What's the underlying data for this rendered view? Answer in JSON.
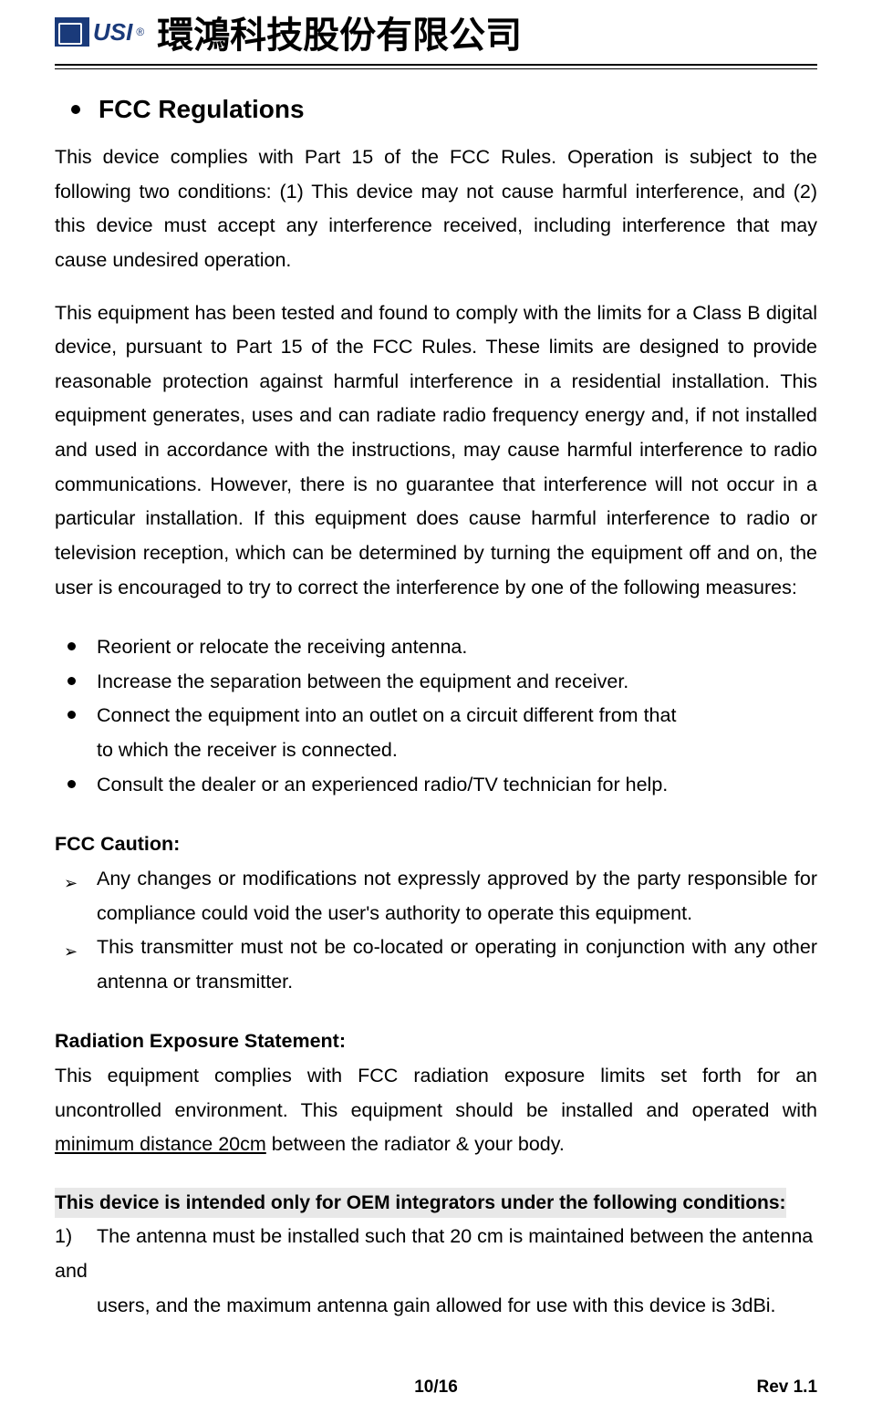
{
  "header": {
    "logo_text": "USI",
    "logo_reg": "®",
    "company_name": "環鴻科技股份有限公司"
  },
  "section": {
    "title": "FCC Regulations"
  },
  "para1": "This device complies with Part 15 of the FCC Rules. Operation is subject to the following two conditions: (1) This device may not cause harmful interference, and (2) this device must accept any interference received, including interference that may cause undesired operation.",
  "para2": "This equipment has been tested and found to comply with the limits for a Class B digital device, pursuant to Part 15 of the FCC Rules.   These limits are designed to provide reasonable protection against harmful interference in a residential installation. This equipment generates, uses and can radiate radio frequency energy and, if not installed and used in accordance with the instructions, may cause harmful interference to radio communications.   However, there is no guarantee that interference will not occur in a particular installation.   If this equipment does cause harmful interference to radio or television reception, which can be determined by turning the equipment off and on, the user is encouraged to try to correct the interference by one of the following measures:",
  "measures": [
    "Reorient or relocate the receiving antenna.",
    "Increase the separation between the equipment and receiver.",
    "Connect the equipment into an outlet on a circuit different from that",
    "Consult the dealer or an experienced radio/TV technician for help."
  ],
  "measure3_sub": "to which the receiver is connected.",
  "caution_heading": "FCC Caution:",
  "cautions": [
    "Any changes or modifications not expressly approved by the party responsible for compliance could void the user's authority to operate this equipment.",
    "This transmitter must not be co-located or operating in conjunction with any other antenna or transmitter."
  ],
  "radiation_heading": "Radiation Exposure Statement:",
  "radiation_text_pre": "This equipment complies with FCC radiation exposure limits set forth for an uncontrolled environment. This equipment should be installed and operated with ",
  "radiation_underline": "minimum distance 20cm",
  "radiation_text_post": " between the radiator & your body.",
  "oem_heading": "This device is intended only for OEM integrators under the following conditions:",
  "oem_item1_num": "1)",
  "oem_item1_text": "The antenna must be installed such that 20 cm is maintained between the antenna",
  "oem_and": "and",
  "oem_item1_sub": "users, and the maximum antenna gain allowed for use with this device is 3dBi.",
  "footer": {
    "page": "10/16",
    "rev": "Rev 1.1"
  }
}
